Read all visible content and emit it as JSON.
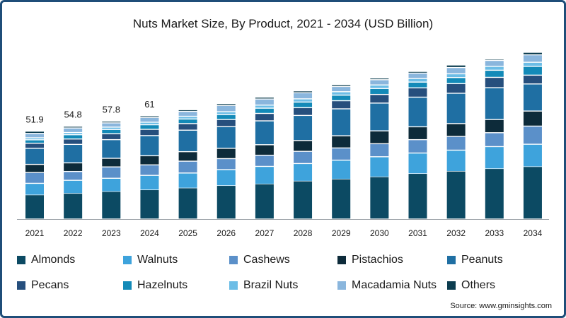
{
  "title": "Nuts Market Size, By Product, 2021 - 2034 (USD Billion)",
  "source": "Source: www.gminsights.com",
  "chart_data": {
    "type": "bar",
    "stacked": true,
    "title": "Nuts Market Size, By Product, 2021 - 2034 (USD Billion)",
    "xlabel": "",
    "ylabel": "",
    "ylim": [
      0,
      104
    ],
    "grid": false,
    "legend_position": "bottom",
    "categories": [
      "2021",
      "2022",
      "2023",
      "2024",
      "2025",
      "2026",
      "2027",
      "2028",
      "2029",
      "2030",
      "2031",
      "2032",
      "2033",
      "2034"
    ],
    "totals": [
      51.9,
      54.8,
      57.8,
      61,
      64.6,
      68.2,
      72.0,
      75.7,
      79.4,
      83.3,
      87.2,
      91.0,
      94.5,
      98.5
    ],
    "total_labels": [
      "51.9",
      "54.8",
      "57.8",
      "61",
      "",
      "",
      "",
      "",
      "",
      "",
      "",
      "",
      "",
      ""
    ],
    "series": [
      {
        "name": "Almonds",
        "color": "#0c4a63",
        "values": [
          14.1,
          15.0,
          16.1,
          17.1,
          18.2,
          19.6,
          20.6,
          22.3,
          23.5,
          24.8,
          26.7,
          28.1,
          29.6,
          30.8
        ]
      },
      {
        "name": "Walnuts",
        "color": "#3ea3dc",
        "values": [
          7.0,
          7.9,
          8.0,
          8.7,
          9.0,
          9.6,
          10.5,
          10.5,
          11.3,
          12.0,
          12.3,
          12.6,
          13.2,
          13.4
        ]
      },
      {
        "name": "Cashews",
        "color": "#5b90c9",
        "values": [
          6.4,
          5.2,
          6.7,
          6.2,
          7.0,
          6.5,
          6.6,
          7.2,
          7.2,
          7.7,
          7.9,
          8.1,
          8.2,
          10.7
        ]
      },
      {
        "name": "Pistachios",
        "color": "#0d2b3a",
        "values": [
          4.8,
          5.1,
          5.1,
          5.4,
          5.6,
          6.1,
          6.2,
          6.4,
          7.2,
          7.6,
          7.6,
          7.6,
          7.8,
          8.9
        ]
      },
      {
        "name": "Peanuts",
        "color": "#1f6fa3",
        "values": [
          9.5,
          10.9,
          11.0,
          11.9,
          12.7,
          12.8,
          14.1,
          14.8,
          15.9,
          16.4,
          17.5,
          17.9,
          18.8,
          16.0
        ]
      },
      {
        "name": "Pecans",
        "color": "#264f7d",
        "values": [
          3.0,
          3.2,
          3.5,
          3.7,
          3.9,
          4.2,
          4.4,
          4.6,
          4.8,
          5.1,
          5.5,
          5.7,
          6.1,
          5.2
        ]
      },
      {
        "name": "Hazelnuts",
        "color": "#138ab8",
        "values": [
          2.0,
          2.5,
          2.5,
          2.7,
          2.7,
          2.9,
          3.1,
          3.3,
          3.3,
          3.5,
          3.4,
          3.6,
          4.2,
          5.2
        ]
      },
      {
        "name": "Brazil Nuts",
        "color": "#6cbde6",
        "values": [
          1.2,
          1.3,
          1.4,
          1.5,
          1.6,
          1.7,
          1.8,
          1.9,
          2.0,
          2.1,
          2.1,
          2.2,
          2.3,
          2.4
        ]
      },
      {
        "name": "Macadamia Nuts",
        "color": "#8ab6dd",
        "values": [
          2.6,
          2.7,
          2.5,
          2.8,
          2.9,
          3.7,
          3.6,
          3.6,
          3.1,
          3.1,
          3.2,
          3.7,
          3.5,
          4.4
        ]
      },
      {
        "name": "Others",
        "color": "#0c3d4f",
        "values": [
          1.3,
          1.0,
          1.0,
          1.0,
          1.0,
          1.1,
          1.1,
          1.1,
          1.1,
          1.0,
          1.0,
          1.5,
          0.8,
          1.5
        ]
      }
    ]
  }
}
